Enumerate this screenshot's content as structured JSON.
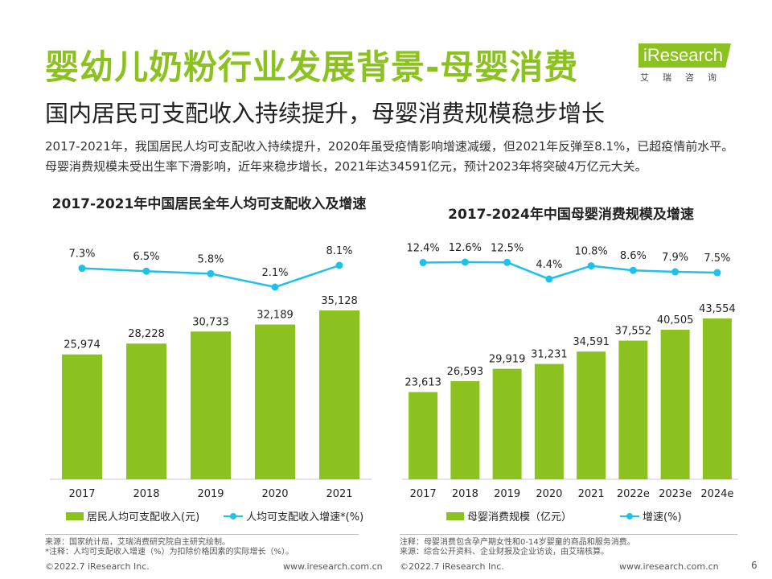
{
  "header": {
    "title": "婴幼儿奶粉行业发展背景-母婴消费",
    "subtitle": "国内居民可支配收入持续提升，母婴消费规模稳步增长",
    "intro": "2017-2021年，我国居民人均可支配收入持续提升，2020年虽受疫情影响增速减缓，但2021年反弹至8.1%，已超疫情前水平。母婴消费规模未受出生率下滑影响，近年来稳步增长，2021年达34591亿元，预计2023年将突破4万亿元大关。"
  },
  "logo": {
    "brand": "iResearch",
    "sub": "艾瑞咨询"
  },
  "colors": {
    "accent": "#8cc21f",
    "bar": "#8cc21f",
    "line": "#20c0e8"
  },
  "chart_data": [
    {
      "type": "bar",
      "title": "2017-2021年中国居民全年人均可支配收入及增速",
      "categories": [
        "2017",
        "2018",
        "2019",
        "2020",
        "2021"
      ],
      "series": [
        {
          "name": "居民人均可支配收入(元)",
          "type": "bar",
          "values": [
            25974,
            28228,
            30733,
            32189,
            35128
          ],
          "labels": [
            "25,974",
            "28,228",
            "30,733",
            "32,189",
            "35,128"
          ]
        },
        {
          "name": "人均可支配收入增速*(%)",
          "type": "line",
          "values": [
            7.3,
            6.5,
            5.8,
            2.1,
            8.1
          ],
          "labels": [
            "7.3%",
            "6.5%",
            "5.8%",
            "2.1%",
            "8.1%"
          ]
        }
      ],
      "legend": "bottom",
      "grid": false
    },
    {
      "type": "bar",
      "title": "2017-2024年中国母婴消费规模及增速",
      "categories": [
        "2017",
        "2018",
        "2019",
        "2020",
        "2021",
        "2022e",
        "2023e",
        "2024e"
      ],
      "series": [
        {
          "name": "母婴消费规模（亿元）",
          "type": "bar",
          "values": [
            23613,
            26593,
            29919,
            31231,
            34591,
            37552,
            40505,
            43554
          ],
          "labels": [
            "23,613",
            "26,593",
            "29,919",
            "31,231",
            "34,591",
            "37,552",
            "40,505",
            "43,554"
          ]
        },
        {
          "name": "增速(%)",
          "type": "line",
          "values": [
            12.4,
            12.6,
            12.5,
            4.4,
            10.8,
            8.6,
            7.9,
            7.5
          ],
          "labels": [
            "12.4%",
            "12.6%",
            "12.5%",
            "4.4%",
            "10.8%",
            "8.6%",
            "7.9%",
            "7.5%"
          ]
        }
      ],
      "legend": "bottom",
      "grid": false
    }
  ],
  "notes": {
    "left_source": "来源：国家统计局，艾瑞消费研究院自主研究绘制。",
    "left_note": "*注释：人均可支配收入增速（%）为扣除价格因素的实际增长（%）。",
    "right_note": "注释：母婴消费包含孕产期女性和0-14岁婴童的商品和服务消费。",
    "right_source": "来源：综合公开资料、企业财报及企业访谈，由艾瑞核算。"
  },
  "footer": {
    "copyright": "©2022.7 iResearch Inc.",
    "website": "www.iresearch.com.cn",
    "page": "6"
  }
}
